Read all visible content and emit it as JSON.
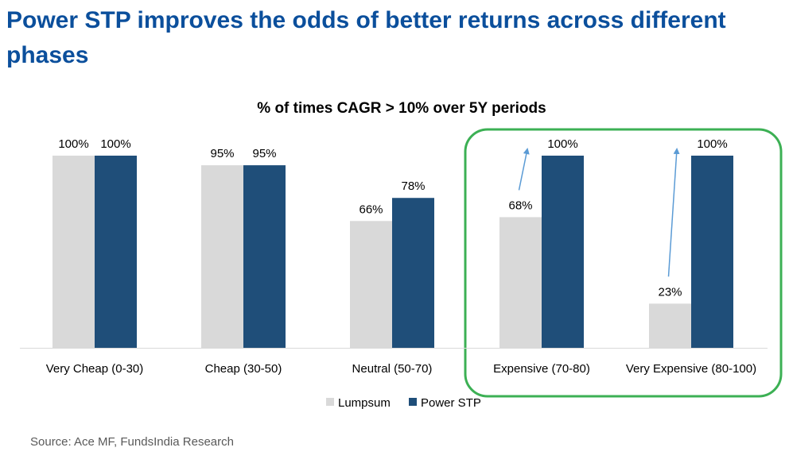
{
  "headline": "Power STP improves the odds of better returns across different phases",
  "source": "Source: Ace MF, FundsIndia Research",
  "colors": {
    "lumpsum": "#d9d9d9",
    "power_stp": "#1f4e79",
    "headline": "#0b4f9c",
    "highlight_box": "#3cb054",
    "arrow": "#5b9bd5"
  },
  "chart_data": {
    "type": "bar",
    "title": "% of times CAGR > 10% over 5Y periods",
    "categories": [
      "Very Cheap (0-30)",
      "Cheap (30-50)",
      "Neutral (50-70)",
      "Expensive (70-80)",
      "Very Expensive (80-100)"
    ],
    "series": [
      {
        "name": "Lumpsum",
        "values": [
          100,
          95,
          66,
          68,
          23
        ],
        "labels": [
          "100%",
          "95%",
          "66%",
          "68%",
          "23%"
        ]
      },
      {
        "name": "Power STP",
        "values": [
          100,
          95,
          78,
          100,
          100
        ],
        "labels": [
          "100%",
          "95%",
          "78%",
          "100%",
          "100%"
        ]
      }
    ],
    "ylim": [
      0,
      100
    ],
    "grid": false,
    "axis_visible": false,
    "legend": "bottom",
    "highlighted_categories": [
      "Expensive (70-80)",
      "Very Expensive (80-100)"
    ],
    "arrows_from_lumpsum_to_power_stp": [
      "Expensive (70-80)",
      "Very Expensive (80-100)"
    ]
  }
}
